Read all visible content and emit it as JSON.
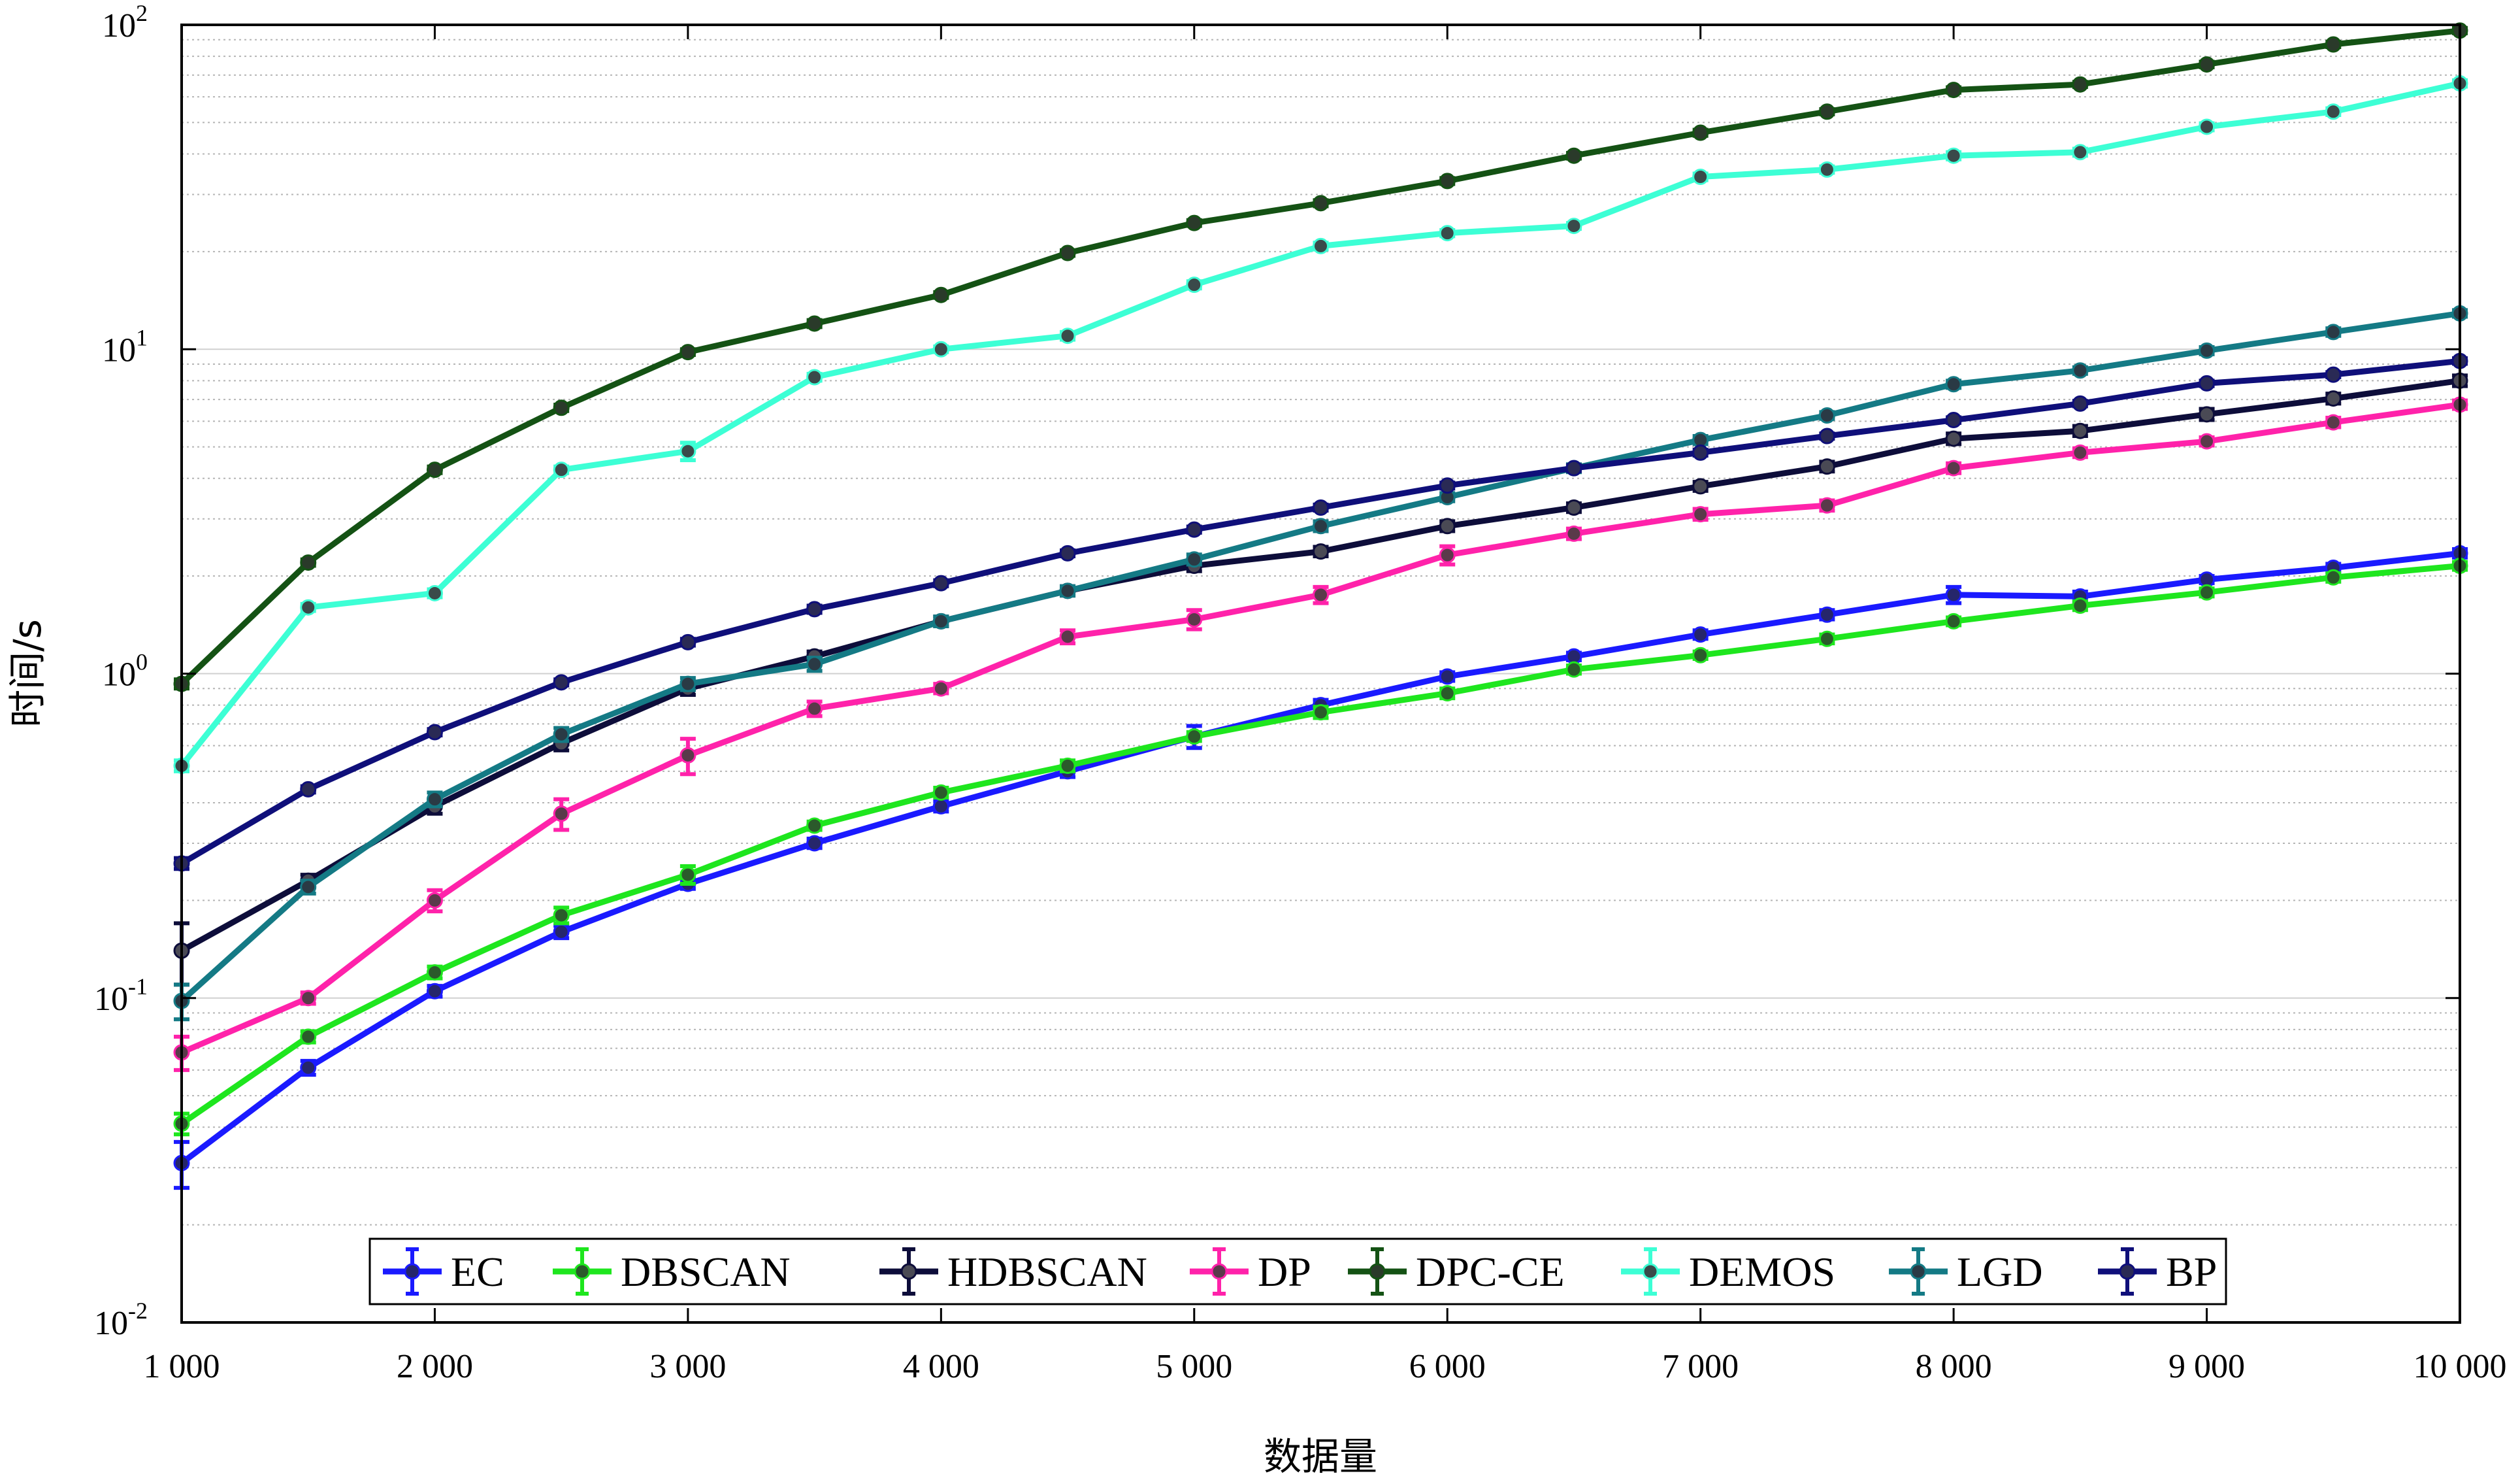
{
  "chart_data": {
    "type": "line",
    "title": "",
    "xlabel": "数据量",
    "ylabel": "时间/s",
    "yscale": "log",
    "xlim": [
      1000,
      10000
    ],
    "ylim": [
      0.01,
      100
    ],
    "grid": true,
    "legend_position": "bottom-center",
    "x": [
      1000,
      1500,
      2000,
      2500,
      3000,
      3500,
      4000,
      4500,
      5000,
      5500,
      6000,
      6500,
      7000,
      7500,
      8000,
      8500,
      9000,
      9500,
      10000
    ],
    "x_tick_values": [
      1000,
      2000,
      3000,
      4000,
      5000,
      6000,
      7000,
      8000,
      9000,
      10000
    ],
    "x_tick_labels": [
      "1 000",
      "2 000",
      "3 000",
      "4 000",
      "5 000",
      "6 000",
      "7 000",
      "8 000",
      "9 000",
      "10 000"
    ],
    "y_ticks": [
      {
        "value": 0.01,
        "base": "10",
        "exp": "-2"
      },
      {
        "value": 0.1,
        "base": "10",
        "exp": "-1"
      },
      {
        "value": 1,
        "base": "10",
        "exp": "0"
      },
      {
        "value": 10,
        "base": "10",
        "exp": "1"
      },
      {
        "value": 100,
        "base": "10",
        "exp": "2"
      }
    ],
    "series": [
      {
        "name": "EC",
        "color": "#1a1aff",
        "marker_color": "#26266b",
        "values": [
          0.031,
          0.061,
          0.105,
          0.16,
          0.225,
          0.3,
          0.39,
          0.5,
          0.64,
          0.8,
          0.98,
          1.13,
          1.32,
          1.52,
          1.75,
          1.73,
          1.95,
          2.12,
          2.35
        ],
        "errors": [
          0.005,
          0.003,
          0.004,
          0.007,
          0.008,
          0.01,
          0.014,
          0.02,
          0.05,
          0.03,
          0.03,
          0.03,
          0.04,
          0.05,
          0.1,
          0.06,
          0.05,
          0.06,
          0.07
        ]
      },
      {
        "name": "DBSCAN",
        "color": "#1ee61e",
        "marker_color": "#2b5a2b",
        "values": [
          0.041,
          0.076,
          0.12,
          0.18,
          0.24,
          0.34,
          0.43,
          0.52,
          0.64,
          0.76,
          0.87,
          1.03,
          1.14,
          1.28,
          1.45,
          1.62,
          1.78,
          1.98,
          2.15
        ],
        "errors": [
          0.003,
          0.003,
          0.005,
          0.01,
          0.015,
          0.01,
          0.015,
          0.02,
          0.02,
          0.03,
          0.03,
          0.03,
          0.03,
          0.04,
          0.04,
          0.05,
          0.05,
          0.06,
          0.06
        ]
      },
      {
        "name": "HDBSCAN",
        "color": "#0d0d3a",
        "marker_color": "#4a4a55",
        "values": [
          0.14,
          0.23,
          0.39,
          0.61,
          0.9,
          1.13,
          1.45,
          1.8,
          2.15,
          2.38,
          2.85,
          3.25,
          3.78,
          4.35,
          5.3,
          5.6,
          6.3,
          7.05,
          8.0
        ],
        "errors": [
          0.03,
          0.01,
          0.02,
          0.03,
          0.04,
          0.04,
          0.05,
          0.06,
          0.08,
          0.08,
          0.1,
          0.1,
          0.12,
          0.15,
          0.2,
          0.2,
          0.25,
          0.25,
          0.3
        ]
      },
      {
        "name": "DP",
        "color": "#ff22aa",
        "marker_color": "#5a3a4a",
        "values": [
          0.068,
          0.1,
          0.2,
          0.37,
          0.56,
          0.78,
          0.9,
          1.3,
          1.47,
          1.75,
          2.32,
          2.7,
          3.1,
          3.3,
          4.3,
          4.8,
          5.2,
          5.95,
          6.75
        ],
        "errors": [
          0.008,
          0.004,
          0.015,
          0.04,
          0.07,
          0.04,
          0.03,
          0.06,
          0.1,
          0.1,
          0.15,
          0.1,
          0.12,
          0.12,
          0.15,
          0.15,
          0.15,
          0.2,
          0.2
        ]
      },
      {
        "name": "DPC-CE",
        "color": "#145214",
        "marker_color": "#2a3a2a",
        "values": [
          0.93,
          2.2,
          4.25,
          6.6,
          9.8,
          12.0,
          14.7,
          19.8,
          24.5,
          28.2,
          33.0,
          39.5,
          46.5,
          54.0,
          63.0,
          65.5,
          75.5,
          87.0,
          96.0
        ],
        "errors": [
          0.03,
          0.05,
          0.1,
          0.15,
          0.2,
          0.3,
          0.3,
          0.4,
          0.5,
          0.6,
          0.7,
          0.8,
          1,
          1,
          1.2,
          1.2,
          1.5,
          1.6,
          1.8
        ]
      },
      {
        "name": "DEMOS",
        "color": "#3dffd5",
        "marker_color": "#3a4a4a",
        "values": [
          0.52,
          1.6,
          1.77,
          4.25,
          4.85,
          8.2,
          10.0,
          11.0,
          15.8,
          20.8,
          22.8,
          24.0,
          34.0,
          35.8,
          39.5,
          40.5,
          48.5,
          54.0,
          66.0
        ],
        "errors": [
          0.02,
          0.04,
          0.05,
          0.1,
          0.3,
          0.2,
          0.2,
          0.3,
          0.4,
          0.5,
          0.5,
          0.5,
          0.8,
          0.8,
          1,
          1,
          1.2,
          1.3,
          1.5
        ]
      },
      {
        "name": "LGD",
        "color": "#147a85",
        "marker_color": "#2a3a45",
        "values": [
          0.098,
          0.22,
          0.41,
          0.65,
          0.93,
          1.07,
          1.45,
          1.8,
          2.25,
          2.85,
          3.5,
          4.3,
          5.25,
          6.25,
          7.8,
          8.6,
          9.9,
          11.3,
          12.9
        ],
        "errors": [
          0.012,
          0.01,
          0.02,
          0.03,
          0.04,
          0.05,
          0.05,
          0.06,
          0.08,
          0.1,
          0.1,
          0.12,
          0.15,
          0.15,
          0.2,
          0.2,
          0.25,
          0.3,
          0.3
        ]
      },
      {
        "name": "BP",
        "color": "#0f0f7a",
        "marker_color": "#2a2a55",
        "values": [
          0.26,
          0.44,
          0.66,
          0.94,
          1.25,
          1.58,
          1.9,
          2.35,
          2.78,
          3.25,
          3.8,
          4.3,
          4.8,
          5.4,
          6.05,
          6.8,
          7.85,
          8.35,
          9.2
        ],
        "errors": [
          0.01,
          0.01,
          0.015,
          0.02,
          0.03,
          0.04,
          0.04,
          0.05,
          0.06,
          0.07,
          0.08,
          0.09,
          0.1,
          0.1,
          0.12,
          0.13,
          0.15,
          0.15,
          0.18
        ]
      }
    ]
  }
}
